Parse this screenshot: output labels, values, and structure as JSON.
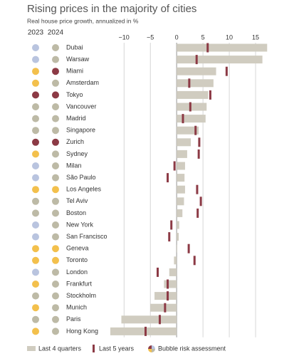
{
  "chart_data": {
    "type": "bar",
    "title": "Rising prices in the majority of cities",
    "subtitle": "Real house price growth, annualized in %",
    "categories": [
      "Dubai",
      "Warsaw",
      "Miami",
      "Amsterdam",
      "Tokyo",
      "Vancouver",
      "Madrid",
      "Singapore",
      "Zurich",
      "Sydney",
      "Milan",
      "São Paulo",
      "Los Angeles",
      "Tel Aviv",
      "Boston",
      "New York",
      "San Francisco",
      "Geneva",
      "Toronto",
      "London",
      "Frankfurt",
      "Stockholm",
      "Munich",
      "Paris",
      "Hong Kong"
    ],
    "series": [
      {
        "name": "Last 4 quarters",
        "color": "#d0ccc0",
        "values": [
          17.2,
          16.3,
          7.5,
          7.0,
          6.0,
          5.7,
          5.5,
          4.2,
          2.7,
          2.0,
          1.6,
          1.5,
          1.6,
          1.4,
          1.1,
          0.5,
          0.4,
          0.1,
          -0.5,
          -1.4,
          -2.4,
          -4.2,
          -5.0,
          -10.5,
          -12.6
        ]
      },
      {
        "name": "Last 5 years",
        "color": "#8c3a45",
        "values": [
          5.9,
          3.8,
          9.5,
          2.4,
          6.4,
          2.6,
          1.2,
          3.6,
          4.3,
          4.2,
          -0.4,
          -1.7,
          3.9,
          4.6,
          4.0,
          -1.0,
          -1.4,
          2.3,
          3.4,
          -3.6,
          -1.7,
          -1.7,
          -2.2,
          -3.2,
          -5.9
        ]
      }
    ],
    "bubble_risk": {
      "name": "Bubble risk assessment",
      "columns": [
        "2023",
        "2024"
      ],
      "colors": [
        [
          "#b9c4df",
          "#b9c4df",
          "#f3c04c",
          "#f3c04c",
          "#8c3a45",
          "#bdbaa6",
          "#bdbaa6",
          "#bdbaa6",
          "#8c3a45",
          "#f3c04c",
          "#b9c4df",
          "#b9c4df",
          "#f3c04c",
          "#bdbaa6",
          "#bdbaa6",
          "#b9c4df",
          "#b9c4df",
          "#f3c04c",
          "#f3c04c",
          "#b9c4df",
          "#f3c04c",
          "#bdbaa6",
          "#f3c04c",
          "#bdbaa6",
          "#f3c04c"
        ],
        [
          "#bdbaa6",
          "#bdbaa6",
          "#8c3a45",
          "#bdbaa6",
          "#8c3a45",
          "#bdbaa6",
          "#bdbaa6",
          "#bdbaa6",
          "#8c3a45",
          "#bdbaa6",
          "#bdbaa6",
          "#bdbaa6",
          "#f3c04c",
          "#bdbaa6",
          "#bdbaa6",
          "#bdbaa6",
          "#bdbaa6",
          "#f3c04c",
          "#f3c04c",
          "#bdbaa6",
          "#bdbaa6",
          "#bdbaa6",
          "#bdbaa6",
          "#bdbaa6",
          "#bdbaa6"
        ]
      ]
    },
    "xlim": [
      -13,
      17.5
    ],
    "xticks": [
      {
        "value": -10,
        "label": "−10"
      },
      {
        "value": -5,
        "label": "−5"
      },
      0,
      5,
      10,
      15
    ],
    "grid": true
  }
}
